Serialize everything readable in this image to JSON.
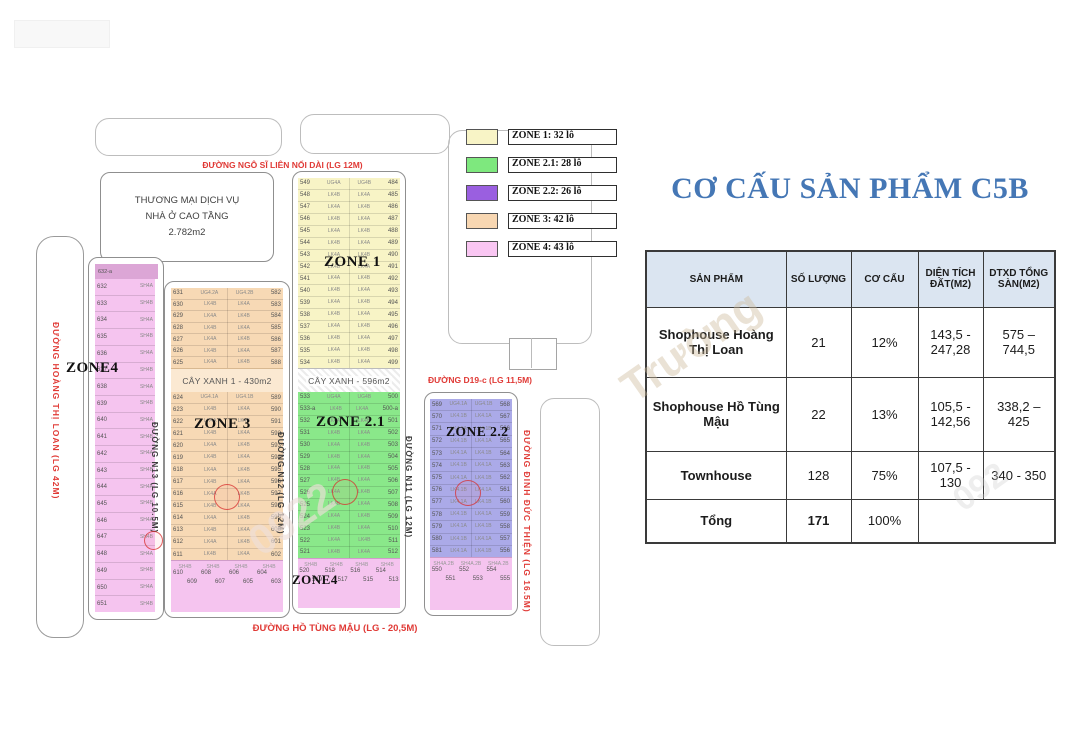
{
  "title": "CƠ CẤU SẢN PHẨM C5B",
  "table": {
    "headers": [
      "SẢN PHẨM",
      "SỐ LƯỢNG",
      "CƠ CẤU",
      "DIỆN TÍCH ĐẤT(M2)",
      "DTXD TỔNG SÀN(M2)"
    ],
    "rows": [
      {
        "product": "Shophouse Hoàng Thị Loan",
        "qty": "21",
        "ratio": "12%",
        "area": "143,5 - 247,28",
        "floor": "575 – 744,5"
      },
      {
        "product": "Shophouse Hồ Tùng Mậu",
        "qty": "22",
        "ratio": "13%",
        "area": "105,5 - 142,56",
        "floor": "338,2 – 425"
      },
      {
        "product": "Townhouse",
        "qty": "128",
        "ratio": "75%",
        "area": "107,5 - 130",
        "floor": "340 - 350"
      },
      {
        "product": "Tổng",
        "qty": "171",
        "ratio": "100%",
        "area": "",
        "floor": ""
      }
    ]
  },
  "legend": [
    {
      "label": "ZONE 1: 32 lô",
      "color": "#f8f4c6"
    },
    {
      "label": "ZONE 2.1: 28 lô",
      "color": "#7ee87e"
    },
    {
      "label": "ZONE 2.2: 26 lô",
      "color": "#9a5fe0"
    },
    {
      "label": "ZONE 3: 42 lô",
      "color": "#f8d7b2"
    },
    {
      "label": "ZONE 4: 43 lô",
      "color": "#f9c6f2"
    }
  ],
  "map": {
    "streets": {
      "ngo_si_lien": "ĐƯỜNG NGÔ SĨ LIÊN NỐI DÀI (LG 12M)",
      "hoang_thi_loan": "ĐƯỜNG HOÀNG THỊ LOAN (LG 42M)",
      "n13": "ĐƯỜNG N13 (LG 10.5M)",
      "n12": "ĐƯỜNG N12 (LG 12M)",
      "n11": "ĐƯỜNG N11 (LG 12M)",
      "d19c": "ĐƯỜNG D19-c (LG 11,5M)",
      "dinh_duc_thien": "ĐƯỜNG ĐINH ĐỨC THIỆN (LG 16.5M)",
      "ho_tung_mau": "ĐƯỜNG HỒ TÙNG MẬU (LG - 20,5M)"
    },
    "commercial": {
      "line1": "THƯƠNG MẠI DỊCH VỤ",
      "line2": "NHÀ Ở CAO TẦNG",
      "line3": "2.782m2"
    },
    "green1": "CÂY XANH 1 - 430m2",
    "green2": "CÂY XANH - 596m2",
    "zone_labels": {
      "zone4_left": "ZONE4",
      "zone3": "ZONE 3",
      "zone1": "ZONE 1",
      "zone21": "ZONE 2.1",
      "zone4_mid": "ZONE4",
      "zone22": "ZONE 2.2"
    },
    "zones": {
      "zone1": {
        "left": [
          "549",
          "548",
          "547",
          "546",
          "545",
          "544",
          "543",
          "542",
          "541",
          "540",
          "539",
          "538",
          "537",
          "536",
          "535",
          "534"
        ],
        "right": [
          "484",
          "485",
          "486",
          "487",
          "488",
          "489",
          "490",
          "491",
          "492",
          "493",
          "494",
          "495",
          "496",
          "497",
          "498",
          "499"
        ],
        "type_a": "LK4A",
        "type_b": "LK4B",
        "corner_a": "UG4A",
        "corner_b": "UG4B"
      },
      "zone21": {
        "left": [
          "533",
          "533-a",
          "532",
          "531",
          "530",
          "529",
          "528",
          "527",
          "526",
          "525",
          "524",
          "523",
          "522",
          "521"
        ],
        "right": [
          "500",
          "500-a",
          "501",
          "502",
          "503",
          "504",
          "505",
          "506",
          "507",
          "508",
          "509",
          "510",
          "511",
          "512"
        ],
        "type_a": "LK4A",
        "type_b": "LK4B",
        "corner_a": "UG4A",
        "corner_b": "UG4B"
      },
      "zone22": {
        "left": [
          "569",
          "570",
          "571",
          "572",
          "573",
          "574",
          "575",
          "576",
          "577",
          "578",
          "579",
          "580",
          "581"
        ],
        "right": [
          "568",
          "567",
          "566",
          "565",
          "564",
          "563",
          "562",
          "561",
          "560",
          "559",
          "558",
          "557",
          "556"
        ],
        "type_a": "LK4.1A",
        "type_b": "LK4.1B",
        "corner_a": "UG4.1A",
        "corner_b": "UG4.1B"
      },
      "zone3_top": {
        "left": [
          "631",
          "630",
          "629",
          "628",
          "627",
          "626",
          "625"
        ],
        "right": [
          "582",
          "583",
          "584",
          "585",
          "586",
          "587",
          "588"
        ],
        "type_a": "LK4A",
        "type_b": "LK4B",
        "corner_a": "UG4.2A",
        "corner_b": "UG4.2B"
      },
      "zone3_bot": {
        "left": [
          "624",
          "623",
          "622",
          "621",
          "620",
          "619",
          "618",
          "617",
          "616",
          "615",
          "614",
          "613",
          "612",
          "611"
        ],
        "right": [
          "589",
          "590",
          "591",
          "592",
          "593",
          "594",
          "595",
          "596",
          "597",
          "598",
          "599",
          "600",
          "601",
          "602"
        ],
        "type_a": "LK4A",
        "type_b": "LK4B",
        "corner_a": "UG4.1A",
        "corner_b": "UG4.1B"
      }
    },
    "zone4_column": {
      "header": "632-a",
      "nums": [
        "632",
        "633",
        "634",
        "635",
        "636",
        "637",
        "638",
        "639",
        "640",
        "641",
        "642",
        "643",
        "644",
        "645",
        "646",
        "647",
        "648",
        "649",
        "650",
        "651"
      ],
      "type_a": "SH4A",
      "type_b": "SH4B"
    },
    "strips": {
      "z3": {
        "nums": [
          "610",
          "609",
          "608",
          "607",
          "606",
          "605",
          "604",
          "603"
        ],
        "type": "SH4B"
      },
      "z21": {
        "nums": [
          "520",
          "519",
          "518",
          "517",
          "516",
          "515",
          "514",
          "513"
        ],
        "type": "SH4B"
      },
      "z22": {
        "nums": [
          "550",
          "551",
          "552",
          "553",
          "554",
          "555"
        ],
        "type": "SH4A.2B"
      }
    }
  },
  "colors": {
    "zone1_fill": "#f8f4c6",
    "zone21_fill": "#8ae88a",
    "zone22_fill": "#abaae8",
    "zone3_fill": "#f7d9b5",
    "zone4_fill": "#f5c4ef",
    "zone4_header": "#dca6d6",
    "title_blue": "#4577b5",
    "street_red": "#e03a36",
    "table_header_bg": "#dbe5f1"
  },
  "watermarks": {
    "w1": "Trường",
    "w2": "0922",
    "w3": "092"
  }
}
